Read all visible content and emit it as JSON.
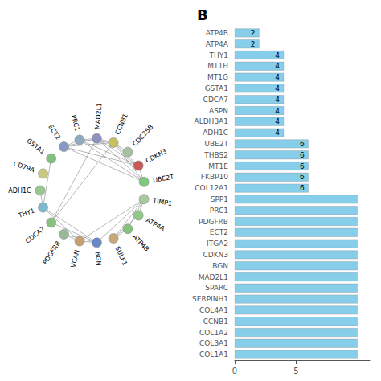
{
  "chart_data": [
    {
      "type": "graph",
      "nodes": [
        "TIMP1",
        "ATP4A",
        "ATP4B",
        "SULF1",
        "BGN",
        "VCAN",
        "PDGFRB",
        "CDCA7",
        "THY1",
        "ADH1C",
        "CD79A",
        "GSTA1",
        "ECT2",
        "PRC1",
        "MAD2L1",
        "CCNB1",
        "CDC25B",
        "CDKN3",
        "UBE2T"
      ],
      "colors": [
        "#a8c8a0",
        "#90c888",
        "#88c080",
        "#c8a878",
        "#6888c8",
        "#c8a070",
        "#98b898",
        "#88c080",
        "#80b8d0",
        "#98c890",
        "#c8c880",
        "#80c080",
        "#8898c8",
        "#90a8c0",
        "#9090c0",
        "#c8c060",
        "#a8c0a0",
        "#c85858",
        "#80c880"
      ],
      "edges": [
        [
          "TIMP1",
          "ATP4A"
        ],
        [
          "TIMP1",
          "ATP4B"
        ],
        [
          "TIMP1",
          "SULF1"
        ],
        [
          "TIMP1",
          "BGN"
        ],
        [
          "TIMP1",
          "VCAN"
        ],
        [
          "ATP4A",
          "SULF1"
        ],
        [
          "ATP4B",
          "SULF1"
        ],
        [
          "BGN",
          "VCAN"
        ],
        [
          "BGN",
          "CDCA7"
        ],
        [
          "BGN",
          "THY1"
        ],
        [
          "VCAN",
          "THY1"
        ],
        [
          "THY1",
          "GSTA1"
        ],
        [
          "THY1",
          "CD79A"
        ],
        [
          "THY1",
          "ADH1C"
        ],
        [
          "CDCA7",
          "CCNB1"
        ],
        [
          "CDCA7",
          "MAD2L1"
        ],
        [
          "ECT2",
          "PRC1"
        ],
        [
          "ECT2",
          "MAD2L1"
        ],
        [
          "ECT2",
          "CCNB1"
        ],
        [
          "ECT2",
          "CDKN3"
        ],
        [
          "ECT2",
          "UBE2T"
        ],
        [
          "PRC1",
          "MAD2L1"
        ],
        [
          "PRC1",
          "CCNB1"
        ],
        [
          "PRC1",
          "CDKN3"
        ],
        [
          "PRC1",
          "UBE2T"
        ],
        [
          "MAD2L1",
          "CCNB1"
        ],
        [
          "MAD2L1",
          "CDKN3"
        ],
        [
          "MAD2L1",
          "UBE2T"
        ],
        [
          "CCNB1",
          "CDC25B"
        ],
        [
          "CCNB1",
          "CDKN3"
        ],
        [
          "CCNB1",
          "UBE2T"
        ],
        [
          "CDKN3",
          "UBE2T"
        ],
        [
          "PDGFRB",
          "BGN"
        ],
        [
          "PDGFRB",
          "VCAN"
        ]
      ]
    },
    {
      "type": "bar",
      "title": "B",
      "orientation": "horizontal",
      "categories": [
        "ATP4B",
        "ATP4A",
        "THY1",
        "MT1H",
        "MT1G",
        "GSTA1",
        "CDCA7",
        "ASPN",
        "ALDH3A1",
        "ADH1C",
        "UBE2T",
        "THBS2",
        "MT1E",
        "FKBP10",
        "COL12A1",
        "SPP1",
        "PRC1",
        "PDGFRB",
        "ECT2",
        "ITGA2",
        "CDKN3",
        "BGN",
        "MAD2L1",
        "SPARC",
        "SERPINH1",
        "COL4A1",
        "CCNB1",
        "COL1A2",
        "COL3A1",
        "COL1A1"
      ],
      "values": [
        2,
        2,
        4,
        4,
        4,
        4,
        4,
        4,
        4,
        4,
        6,
        6,
        6,
        6,
        6,
        10,
        10,
        10,
        10,
        10,
        10,
        10,
        10,
        10,
        10,
        10,
        10,
        10,
        10,
        10
      ],
      "value_labels": [
        "2",
        "2",
        "4",
        "4",
        "4",
        "4",
        "4",
        "4",
        "4",
        "4",
        "6",
        "6",
        "6",
        "6",
        "6",
        null,
        null,
        null,
        null,
        null,
        null,
        null,
        null,
        null,
        null,
        null,
        null,
        null,
        null,
        null
      ],
      "data_labels": true,
      "color": "#87CEEB",
      "xlim": [
        0,
        11
      ],
      "xticks": [
        0,
        5
      ],
      "grid": false
    }
  ]
}
